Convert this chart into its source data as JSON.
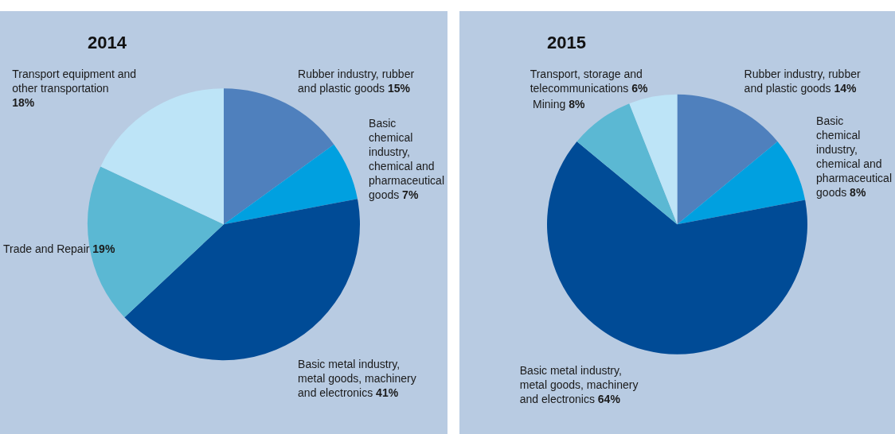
{
  "chart_data": [
    {
      "type": "pie",
      "title": "2014",
      "categories": [
        "Rubber industry, rubber and plastic goods",
        "Basic chemical industry, chemical and pharmaceutical goods",
        "Basic metal industry, metal goods, machinery and electronics",
        "Trade and Repair",
        "Transport equipment and other transportation"
      ],
      "values": [
        15,
        7,
        41,
        19,
        18
      ],
      "value_labels": [
        "15%",
        "7%",
        "41%",
        "19%",
        "18%"
      ],
      "colors": [
        "#4f80bd",
        "#00a0e0",
        "#004b96",
        "#5bb8d3",
        "#bde4f7"
      ],
      "legend": false
    },
    {
      "type": "pie",
      "title": "2015",
      "categories": [
        "Rubber industry, rubber and plastic goods",
        "Basic chemical industry, chemical and pharmaceutical goods",
        "Basic metal industry, metal goods, machinery and electronics",
        "Mining",
        "Transport, storage and telecommunications"
      ],
      "values": [
        14,
        8,
        64,
        8,
        6
      ],
      "value_labels": [
        "14%",
        "8%",
        "64%",
        "8%",
        "6%"
      ],
      "colors": [
        "#4f80bd",
        "#00a0e0",
        "#004b96",
        "#5bb8d3",
        "#bde4f7"
      ],
      "legend": false
    }
  ]
}
